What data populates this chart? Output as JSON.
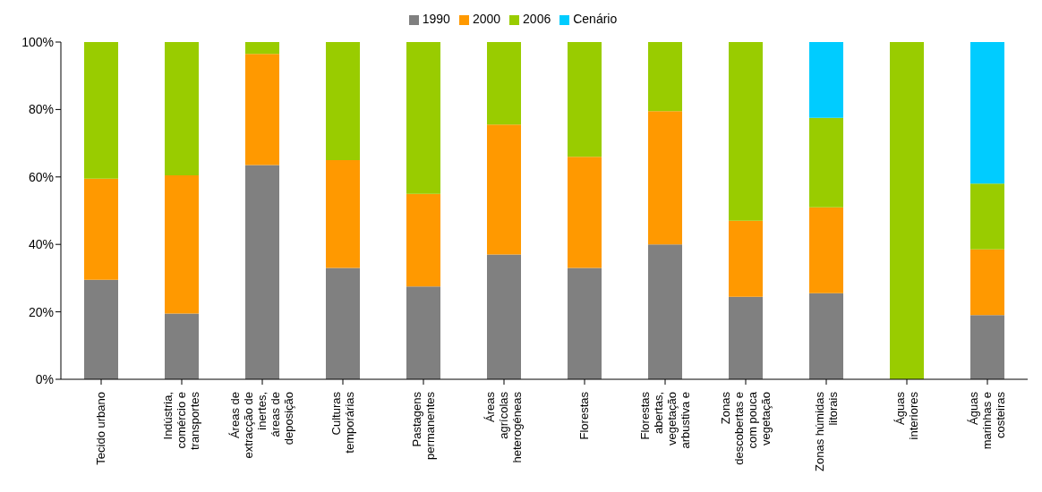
{
  "chart_data": {
    "type": "bar",
    "stacked": true,
    "categories": [
      "Tecido urbano",
      "Indústria, comércio e transportes",
      "Áreas de extracção de inertes, áreas de deposição",
      "Culturas temporárias",
      "Pastagens permanentes",
      "Áreas agrícolas heterogéneas",
      "Florestas",
      "Florestas abertas, vegetação arbustiva e",
      "Zonas descobertas e com pouca vegetação",
      "Zonas húmidas litorais",
      "Águas interiores",
      "Águas marinhas e costeiras"
    ],
    "series": [
      {
        "name": "1990",
        "color": "#808080",
        "values": [
          29.5,
          19.5,
          63.5,
          33,
          27.5,
          37,
          33,
          40,
          24.5,
          25.5,
          0,
          19
        ]
      },
      {
        "name": "2000",
        "color": "#ff9900",
        "values": [
          30,
          41,
          33,
          32,
          27.5,
          38.5,
          33,
          39.5,
          22.5,
          25.5,
          0,
          19.5
        ]
      },
      {
        "name": "2006",
        "color": "#99cc00",
        "values": [
          40.5,
          39.5,
          3.5,
          35,
          45,
          24.5,
          34,
          20.5,
          53,
          26.5,
          100,
          19.5
        ]
      },
      {
        "name": "Cenário",
        "color": "#00ccff",
        "values": [
          null,
          null,
          null,
          null,
          null,
          null,
          null,
          null,
          null,
          22.5,
          null,
          42
        ]
      }
    ],
    "ylim": [
      0,
      100
    ],
    "yticks": [
      {
        "value": 0,
        "label": "0%"
      },
      {
        "value": 20,
        "label": "20%"
      },
      {
        "value": 40,
        "label": "40%"
      },
      {
        "value": 60,
        "label": "60%"
      },
      {
        "value": 80,
        "label": "80%"
      },
      {
        "value": 100,
        "label": "100%"
      }
    ],
    "grid": false,
    "legend": "top"
  }
}
